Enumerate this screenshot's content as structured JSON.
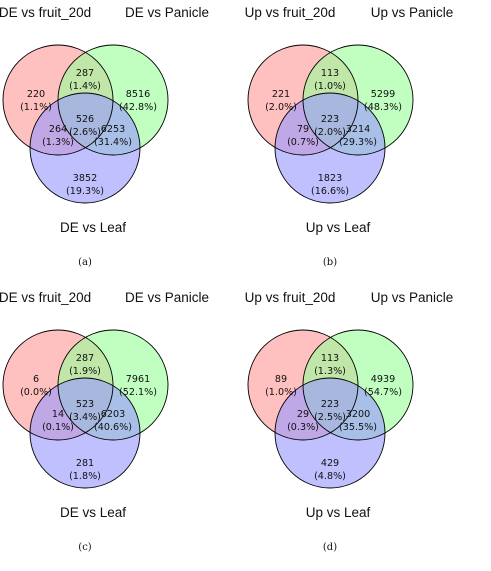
{
  "colors": {
    "set_a": "#ff9a9a",
    "set_b": "#9aff9a",
    "set_c": "#9a9aff",
    "outline": "#000000"
  },
  "panels": [
    {
      "caption": "(a)",
      "labels": {
        "a": "DE vs fruit_20d",
        "b": "DE vs Panicle",
        "c": "DE vs Leaf"
      },
      "regions": {
        "a_only": {
          "count": "220",
          "pct": "(1.1%)"
        },
        "ab": {
          "count": "287",
          "pct": "(1.4%)"
        },
        "b_only": {
          "count": "8516",
          "pct": "(42.8%)"
        },
        "abc": {
          "count": "526",
          "pct": "(2.6%)"
        },
        "ac": {
          "count": "264",
          "pct": "(1.3%)"
        },
        "bc": {
          "count": "6253",
          "pct": "(31.4%)"
        },
        "c_only": {
          "count": "3852",
          "pct": "(19.3%)"
        }
      }
    },
    {
      "caption": "(b)",
      "labels": {
        "a": "Up vs fruit_20d",
        "b": "Up vs Panicle",
        "c": "Up vs Leaf"
      },
      "regions": {
        "a_only": {
          "count": "221",
          "pct": "(2.0%)"
        },
        "ab": {
          "count": "113",
          "pct": "(1.0%)"
        },
        "b_only": {
          "count": "5299",
          "pct": "(48.3%)"
        },
        "abc": {
          "count": "223",
          "pct": "(2.0%)"
        },
        "ac": {
          "count": "79",
          "pct": "(0.7%)"
        },
        "bc": {
          "count": "3214",
          "pct": "(29.3%)"
        },
        "c_only": {
          "count": "1823",
          "pct": "(16.6%)"
        }
      }
    },
    {
      "caption": "(c)",
      "labels": {
        "a": "DE vs fruit_20d",
        "b": "DE vs Panicle",
        "c": "DE vs Leaf"
      },
      "regions": {
        "a_only": {
          "count": "6",
          "pct": "(0.0%)"
        },
        "ab": {
          "count": "287",
          "pct": "(1.9%)"
        },
        "b_only": {
          "count": "7961",
          "pct": "(52.1%)"
        },
        "abc": {
          "count": "523",
          "pct": "(3.4%)"
        },
        "ac": {
          "count": "14",
          "pct": "(0.1%)"
        },
        "bc": {
          "count": "6203",
          "pct": "(40.6%)"
        },
        "c_only": {
          "count": "281",
          "pct": "(1.8%)"
        }
      }
    },
    {
      "caption": "(d)",
      "labels": {
        "a": "Up vs fruit_20d",
        "b": "Up vs Panicle",
        "c": "Up vs Leaf"
      },
      "regions": {
        "a_only": {
          "count": "89",
          "pct": "(1.0%)"
        },
        "ab": {
          "count": "113",
          "pct": "(1.3%)"
        },
        "b_only": {
          "count": "4939",
          "pct": "(54.7%)"
        },
        "abc": {
          "count": "223",
          "pct": "(2.5%)"
        },
        "ac": {
          "count": "29",
          "pct": "(0.3%)"
        },
        "bc": {
          "count": "3200",
          "pct": "(35.5%)"
        },
        "c_only": {
          "count": "429",
          "pct": "(4.8%)"
        }
      }
    }
  ]
}
